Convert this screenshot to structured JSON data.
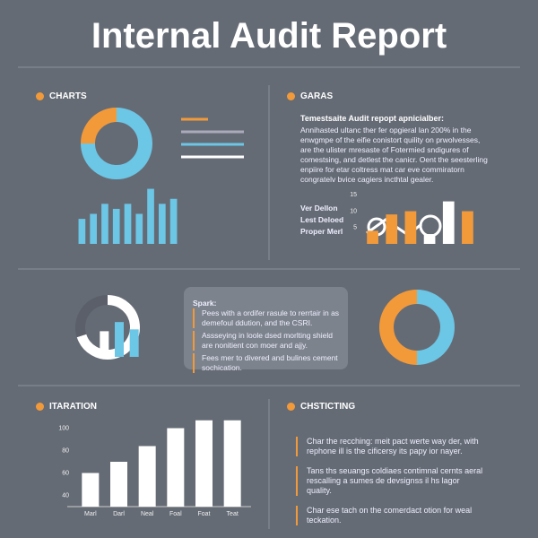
{
  "title": "Internal Audit Report",
  "sections": [
    "CHARTS",
    "GARAS",
    "ITARATION",
    "CHSTICTING"
  ],
  "summary": {
    "heading": "Temestsaite Audit repopt apnicialber:",
    "lines": [
      "Annihasted ultanc ther fer opgieral lan 200% in the",
      "enwgmpe of the eifie conistort quility on prwolvesses,",
      "are the ulister mresaste of Fotermied sndigures of",
      "comestsing, and detlest the canicr. Oent the seesterling",
      "enpiire for etar coltress mat car eve commiratorn",
      "congratelv bvice cagiers incthtal gealer."
    ]
  },
  "mini_labels": [
    "Ver Dellon",
    "Lest Deloed",
    "Proper Merl"
  ],
  "spark": {
    "heading": "Spark:",
    "items": [
      "Pees with a ordifer rasule to rerrtair in as demefoul ddution, and the CSRI.",
      "Assseying in loole dsed morlting shield are nonitient con moer and ajjy.",
      "Fees mer to divered and bulines cement sochication."
    ]
  },
  "checklist": [
    "Char the recching: meit pact werte way der, with rephone ill is the cificersy its papy ior nayer.",
    "Tans ths seuangs coldiaes contimnal cernts aeral rescalling a sumes de devsignss il hs lagor quality.",
    "Char ese tach on the comerdact otion for weal teckation."
  ],
  "chart_data": [
    {
      "type": "donut",
      "values": [
        75,
        25
      ],
      "colors": [
        "#6cc6e6",
        "#f29a3a"
      ]
    },
    {
      "type": "bar",
      "values": [
        25,
        30,
        40,
        35,
        40,
        30,
        55,
        40,
        45
      ],
      "color": "#6cc6e6",
      "ylim": [
        0,
        60
      ]
    },
    {
      "type": "bar",
      "values": [
        4,
        9,
        10,
        3,
        13,
        10
      ],
      "colors": [
        "#f29a3a",
        "#f29a3a",
        "#f29a3a",
        "#ffffff",
        "#ffffff",
        "#f29a3a"
      ],
      "ylim": [
        0,
        17
      ],
      "yticks": [
        5,
        10,
        15
      ]
    },
    {
      "type": "donut",
      "values": [
        70,
        30
      ],
      "colors": [
        "#ffffff",
        "#5a5f69"
      ]
    },
    {
      "type": "bar",
      "values": [
        28,
        38,
        30
      ],
      "colors": [
        "#ffffff",
        "#6cc6e6",
        "#6cc6e6"
      ],
      "ylim": [
        0,
        45
      ]
    },
    {
      "type": "donut",
      "values": [
        50,
        50
      ],
      "colors": [
        "#6cc6e6",
        "#f29a3a"
      ]
    },
    {
      "type": "bar",
      "categories": [
        "Marl",
        "Darl",
        "Neal",
        "Foal",
        "Foat",
        "Teat"
      ],
      "values": [
        60,
        70,
        84,
        100,
        107,
        107
      ],
      "color": "#ffffff",
      "ylim": [
        30,
        110
      ],
      "yticks": [
        40,
        60,
        80,
        100
      ]
    }
  ]
}
